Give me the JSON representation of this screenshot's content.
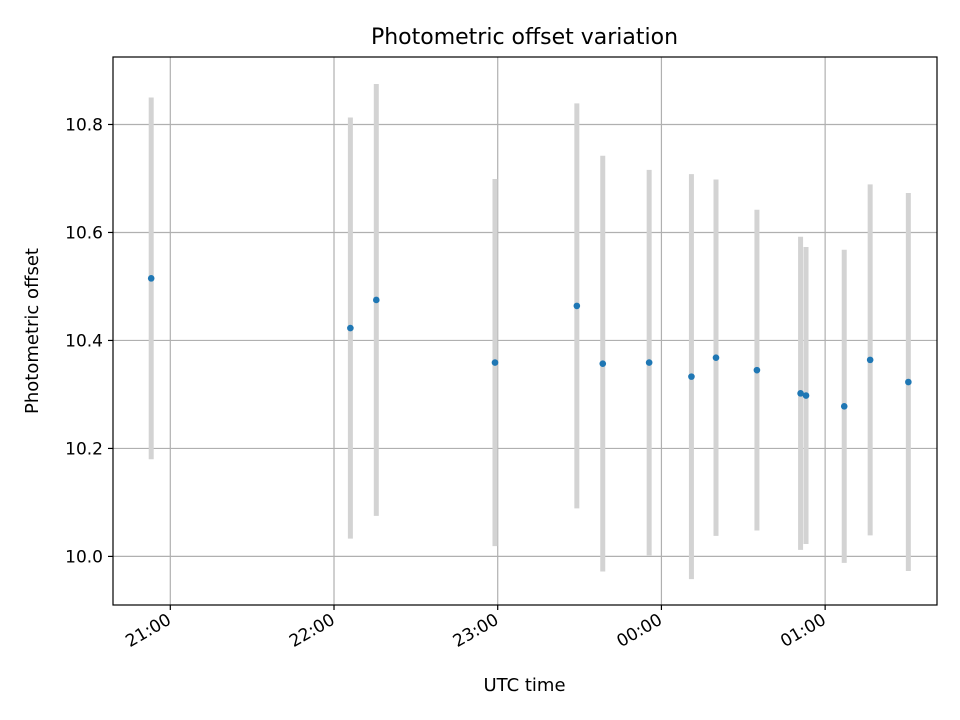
{
  "chart_data": {
    "type": "scatter",
    "title": "Photometric offset variation",
    "xlabel": "UTC time",
    "ylabel": "Photometric offset",
    "x_ticks": [
      "21:00",
      "22:00",
      "23:00",
      "00:00",
      "01:00"
    ],
    "x_tick_minutes": [
      0,
      60,
      120,
      180,
      240
    ],
    "y_ticks": [
      "10.0",
      "10.2",
      "10.4",
      "10.6",
      "10.8"
    ],
    "y_tick_values": [
      10.0,
      10.2,
      10.4,
      10.6,
      10.8
    ],
    "xlim_minutes": [
      -21,
      281
    ],
    "ylim": [
      9.91,
      10.925
    ],
    "grid": true,
    "colors": {
      "point": "#1f77b4",
      "errorbar": "#d3d3d3",
      "grid": "#b0b0b0"
    },
    "series": [
      {
        "x_minutes": [
          -7,
          66,
          75.5,
          119,
          149,
          158.5,
          175.5,
          191,
          200,
          215,
          231,
          233,
          247,
          256.5,
          270.5
        ],
        "y": [
          10.515,
          10.423,
          10.475,
          10.359,
          10.464,
          10.357,
          10.359,
          10.333,
          10.368,
          10.345,
          10.302,
          10.298,
          10.278,
          10.364,
          10.323
        ],
        "yerr": [
          0.335,
          0.39,
          0.4,
          0.34,
          0.375,
          0.385,
          0.357,
          0.375,
          0.33,
          0.297,
          0.29,
          0.275,
          0.29,
          0.325,
          0.35
        ]
      }
    ]
  }
}
